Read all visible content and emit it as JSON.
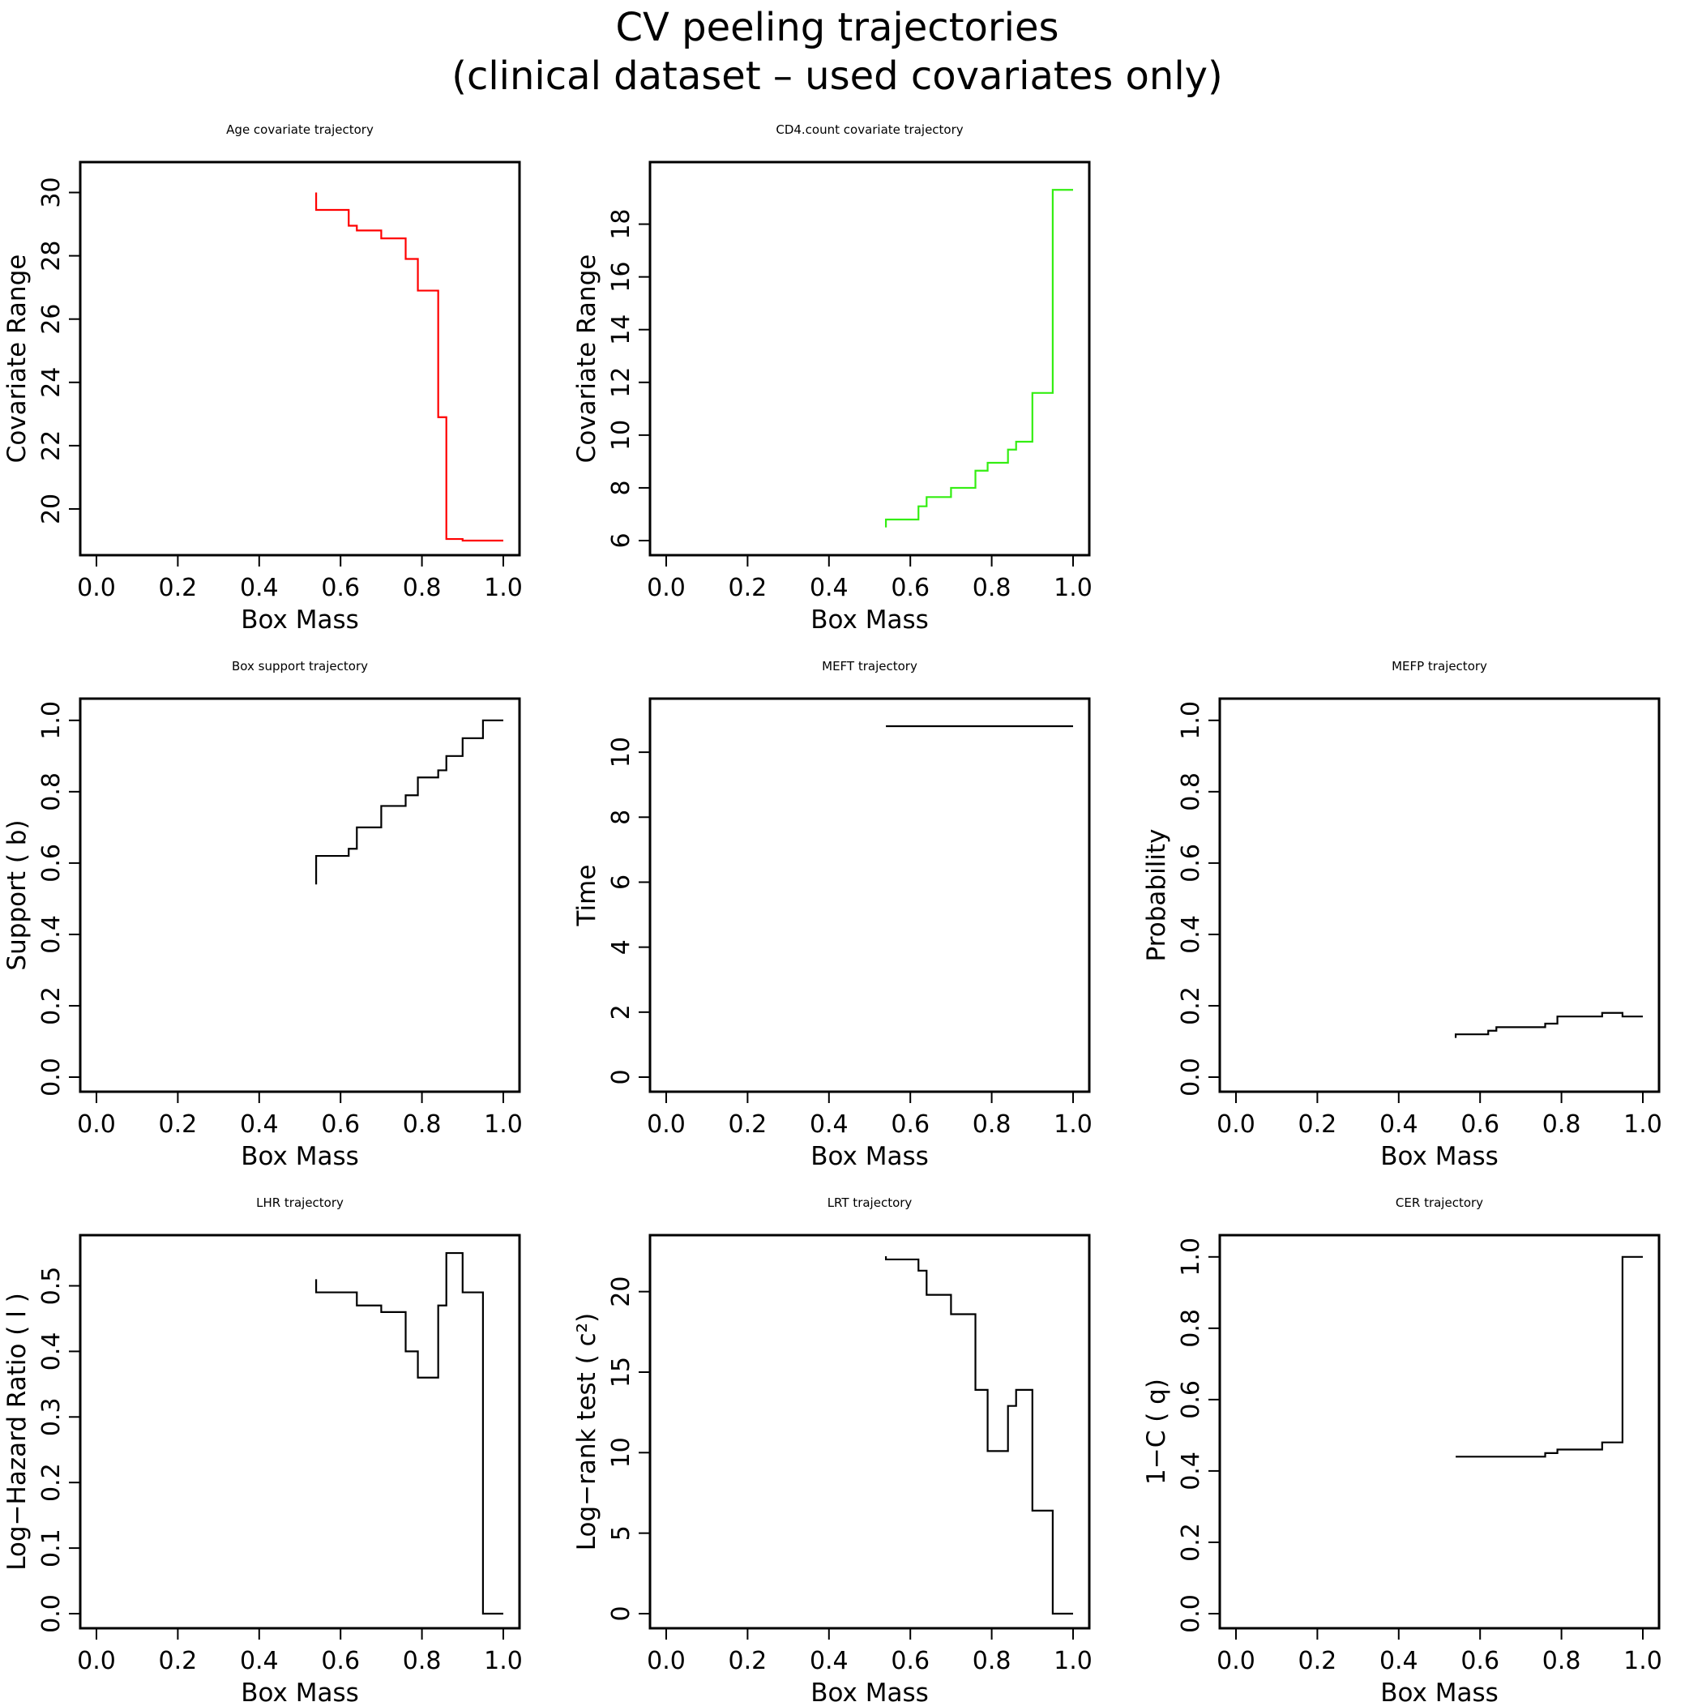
{
  "figure": {
    "title_line1": "CV peeling trajectories",
    "title_line2": "(clinical dataset – used covariates only)"
  },
  "chart_data": [
    {
      "type": "line",
      "step": true,
      "title": "Age covariate trajectory",
      "xlabel": "Box Mass",
      "ylabel": "Covariate Range",
      "color": "#ff0000",
      "xlim": [
        0,
        1
      ],
      "ylim": [
        19,
        30.5
      ],
      "xticks": [
        0.0,
        0.2,
        0.4,
        0.6,
        0.8,
        1.0
      ],
      "xtick_labels": [
        "0.0",
        "0.2",
        "0.4",
        "0.6",
        "0.8",
        "1.0"
      ],
      "yticks": [
        20,
        22,
        24,
        26,
        28,
        30
      ],
      "ytick_labels": [
        "20",
        "22",
        "24",
        "26",
        "28",
        "30"
      ],
      "x": [
        0.54,
        0.54,
        0.62,
        0.64,
        0.7,
        0.76,
        0.79,
        0.84,
        0.86,
        0.9,
        1.0
      ],
      "y": [
        30.0,
        29.45,
        28.95,
        28.8,
        28.55,
        27.9,
        26.9,
        22.9,
        19.05,
        19.0,
        19.0
      ]
    },
    {
      "type": "line",
      "step": true,
      "title": "CD4.count covariate trajectory",
      "xlabel": "Box Mass",
      "ylabel": "Covariate Range",
      "color": "#33ee11",
      "xlim": [
        0,
        1
      ],
      "ylim": [
        6,
        19.8
      ],
      "xticks": [
        0.0,
        0.2,
        0.4,
        0.6,
        0.8,
        1.0
      ],
      "xtick_labels": [
        "0.0",
        "0.2",
        "0.4",
        "0.6",
        "0.8",
        "1.0"
      ],
      "yticks": [
        6,
        8,
        10,
        12,
        14,
        16,
        18
      ],
      "ytick_labels": [
        "6",
        "8",
        "10",
        "12",
        "14",
        "16",
        "18"
      ],
      "x": [
        0.54,
        0.54,
        0.62,
        0.64,
        0.7,
        0.76,
        0.79,
        0.84,
        0.86,
        0.9,
        0.95,
        1.0
      ],
      "y": [
        6.5,
        6.8,
        7.3,
        7.65,
        8.0,
        8.65,
        8.95,
        9.45,
        9.75,
        11.6,
        19.3,
        19.3
      ]
    },
    {
      "type": "line",
      "step": true,
      "title": "Box support trajectory",
      "xlabel": "Box Mass",
      "ylabel": "Support ( b)",
      "color": "#000000",
      "xlim": [
        0,
        1
      ],
      "ylim": [
        0,
        1.02
      ],
      "xticks": [
        0.0,
        0.2,
        0.4,
        0.6,
        0.8,
        1.0
      ],
      "xtick_labels": [
        "0.0",
        "0.2",
        "0.4",
        "0.6",
        "0.8",
        "1.0"
      ],
      "yticks": [
        0.0,
        0.2,
        0.4,
        0.6,
        0.8,
        1.0
      ],
      "ytick_labels": [
        "0.0",
        "0.2",
        "0.4",
        "0.6",
        "0.8",
        "1.0"
      ],
      "x": [
        0.54,
        0.54,
        0.62,
        0.64,
        0.7,
        0.76,
        0.79,
        0.84,
        0.86,
        0.9,
        0.95,
        1.0
      ],
      "y": [
        0.54,
        0.62,
        0.64,
        0.7,
        0.76,
        0.79,
        0.84,
        0.86,
        0.9,
        0.95,
        1.0,
        1.0
      ]
    },
    {
      "type": "line",
      "step": true,
      "title": "MEFT trajectory",
      "xlabel": "Box Mass",
      "ylabel": "Time",
      "color": "#000000",
      "xlim": [
        0,
        1
      ],
      "ylim": [
        0,
        11.2
      ],
      "xticks": [
        0.0,
        0.2,
        0.4,
        0.6,
        0.8,
        1.0
      ],
      "xtick_labels": [
        "0.0",
        "0.2",
        "0.4",
        "0.6",
        "0.8",
        "1.0"
      ],
      "yticks": [
        0,
        2,
        4,
        6,
        8,
        10
      ],
      "ytick_labels": [
        "0",
        "2",
        "4",
        "6",
        "8",
        "10"
      ],
      "x": [
        0.54,
        1.0
      ],
      "y": [
        10.8,
        10.8
      ]
    },
    {
      "type": "line",
      "step": true,
      "title": "MEFP trajectory",
      "xlabel": "Box Mass",
      "ylabel": "Probability",
      "color": "#000000",
      "xlim": [
        0,
        1
      ],
      "ylim": [
        0,
        1.02
      ],
      "xticks": [
        0.0,
        0.2,
        0.4,
        0.6,
        0.8,
        1.0
      ],
      "xtick_labels": [
        "0.0",
        "0.2",
        "0.4",
        "0.6",
        "0.8",
        "1.0"
      ],
      "yticks": [
        0.0,
        0.2,
        0.4,
        0.6,
        0.8,
        1.0
      ],
      "ytick_labels": [
        "0.0",
        "0.2",
        "0.4",
        "0.6",
        "0.8",
        "1.0"
      ],
      "x": [
        0.54,
        0.54,
        0.62,
        0.64,
        0.76,
        0.79,
        0.9,
        0.95,
        1.0
      ],
      "y": [
        0.11,
        0.12,
        0.13,
        0.14,
        0.15,
        0.17,
        0.18,
        0.17,
        0.17
      ]
    },
    {
      "type": "line",
      "step": true,
      "title": "LHR trajectory",
      "xlabel": "Box Mass",
      "ylabel": "Log−Hazard Ratio (   l   )",
      "color": "#000000",
      "xlim": [
        0,
        1
      ],
      "ylim": [
        0,
        0.555
      ],
      "xticks": [
        0.0,
        0.2,
        0.4,
        0.6,
        0.8,
        1.0
      ],
      "xtick_labels": [
        "0.0",
        "0.2",
        "0.4",
        "0.6",
        "0.8",
        "1.0"
      ],
      "yticks": [
        0.0,
        0.1,
        0.2,
        0.3,
        0.4,
        0.5
      ],
      "ytick_labels": [
        "0.0",
        "0.1",
        "0.2",
        "0.3",
        "0.4",
        "0.5"
      ],
      "x": [
        0.54,
        0.54,
        0.64,
        0.7,
        0.76,
        0.79,
        0.84,
        0.86,
        0.9,
        0.95,
        1.0
      ],
      "y": [
        0.51,
        0.49,
        0.47,
        0.46,
        0.4,
        0.36,
        0.47,
        0.55,
        0.49,
        0.0,
        0.0
      ]
    },
    {
      "type": "line",
      "step": true,
      "title": "LRT trajectory",
      "xlabel": "Box Mass",
      "ylabel": "Log−rank test (  c²)",
      "color": "#000000",
      "xlim": [
        0,
        1
      ],
      "ylim": [
        0,
        22.6
      ],
      "xticks": [
        0.0,
        0.2,
        0.4,
        0.6,
        0.8,
        1.0
      ],
      "xtick_labels": [
        "0.0",
        "0.2",
        "0.4",
        "0.6",
        "0.8",
        "1.0"
      ],
      "yticks": [
        0,
        5,
        10,
        15,
        20
      ],
      "ytick_labels": [
        "0",
        "5",
        "10",
        "15",
        "20"
      ],
      "x": [
        0.54,
        0.54,
        0.62,
        0.64,
        0.7,
        0.76,
        0.79,
        0.84,
        0.86,
        0.9,
        0.95,
        1.0
      ],
      "y": [
        22.2,
        22.0,
        21.3,
        19.8,
        18.6,
        13.9,
        10.1,
        12.9,
        13.9,
        6.4,
        0.0,
        0.0
      ]
    },
    {
      "type": "line",
      "step": true,
      "title": "CER trajectory",
      "xlabel": "Box Mass",
      "ylabel": "1−C ( q)",
      "color": "#000000",
      "xlim": [
        0,
        1
      ],
      "ylim": [
        0,
        1.02
      ],
      "xticks": [
        0.0,
        0.2,
        0.4,
        0.6,
        0.8,
        1.0
      ],
      "xtick_labels": [
        "0.0",
        "0.2",
        "0.4",
        "0.6",
        "0.8",
        "1.0"
      ],
      "yticks": [
        0.0,
        0.2,
        0.4,
        0.6,
        0.8,
        1.0
      ],
      "ytick_labels": [
        "0.0",
        "0.2",
        "0.4",
        "0.6",
        "0.8",
        "1.0"
      ],
      "x": [
        0.54,
        0.76,
        0.79,
        0.9,
        0.95,
        1.0
      ],
      "y": [
        0.44,
        0.45,
        0.46,
        0.48,
        1.0,
        1.0
      ]
    }
  ]
}
